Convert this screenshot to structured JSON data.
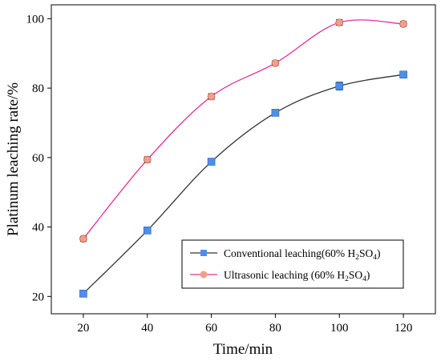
{
  "chart_data": {
    "type": "line",
    "xlabel": "Time/min",
    "ylabel": "Platinum leaching rate/%",
    "x": [
      20,
      40,
      60,
      80,
      100,
      120
    ],
    "xlim": [
      10,
      130
    ],
    "ylim": [
      15,
      104
    ],
    "xticks": [
      20,
      40,
      60,
      80,
      100,
      120
    ],
    "yticks": [
      20,
      40,
      60,
      80,
      100
    ],
    "grid": false,
    "legend_position": "lower-right",
    "series": [
      {
        "name": "Conventional leaching(60% H2SO4)",
        "label_main": "Conventional leaching(60% H",
        "label_sub": "2",
        "label_mid": "SO",
        "label_sub2": "4",
        "label_end": ")",
        "values": [
          20.8,
          39.0,
          58.8,
          72.9,
          80.6,
          83.9
        ],
        "errors": [
          0.8,
          0.9,
          0.8,
          0.7,
          1.1,
          0.9
        ],
        "line_color": "#333333",
        "marker_color": "#4d8fe8",
        "marker": "square"
      },
      {
        "name": "Ultrasonic leaching (60% H2SO4)",
        "label_main": "Ultrasonic leaching (60% H",
        "label_sub": "2",
        "label_mid": "SO",
        "label_sub2": "4",
        "label_end": ")",
        "values": [
          36.6,
          59.4,
          77.6,
          87.2,
          98.9,
          98.5
        ],
        "errors": [
          0.7,
          0.8,
          0.8,
          0.7,
          0.8,
          0.7
        ],
        "line_color": "#e0309c",
        "marker_color": "#f0a088",
        "marker": "circle"
      }
    ]
  }
}
